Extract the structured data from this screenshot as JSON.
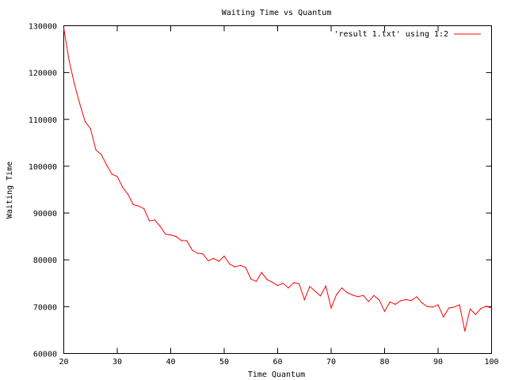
{
  "chart_data": {
    "type": "line",
    "title": "Waiting Time vs Quantum",
    "xlabel": "Time Quantum",
    "ylabel": "Waiting Time",
    "xlim": [
      20,
      100
    ],
    "ylim": [
      60000,
      130000
    ],
    "xticks": [
      20,
      30,
      40,
      50,
      60,
      70,
      80,
      90,
      100
    ],
    "yticks": [
      60000,
      70000,
      80000,
      90000,
      100000,
      110000,
      120000,
      130000
    ],
    "grid": false,
    "legend_position": "top-right",
    "series": [
      {
        "name": "'result 1.txt' using 1:2",
        "color": "#ff0000",
        "x": [
          20,
          21,
          22,
          23,
          24,
          25,
          26,
          27,
          28,
          29,
          30,
          31,
          32,
          33,
          34,
          35,
          36,
          37,
          38,
          39,
          40,
          41,
          42,
          43,
          44,
          45,
          46,
          47,
          48,
          49,
          50,
          51,
          52,
          53,
          54,
          55,
          56,
          57,
          58,
          59,
          60,
          61,
          62,
          63,
          64,
          65,
          66,
          67,
          68,
          69,
          70,
          71,
          72,
          73,
          74,
          75,
          76,
          77,
          78,
          79,
          80,
          81,
          82,
          83,
          84,
          85,
          86,
          87,
          88,
          89,
          90,
          91,
          92,
          93,
          94,
          95,
          96,
          97,
          98,
          99,
          100
        ],
        "y": [
          129500,
          122500,
          117500,
          113300,
          109500,
          108000,
          103500,
          102500,
          100300,
          98300,
          97800,
          95500,
          94000,
          91800,
          91500,
          90900,
          88300,
          88500,
          87200,
          85500,
          85300,
          85000,
          84100,
          84100,
          82100,
          81400,
          81300,
          79800,
          80300,
          79700,
          80800,
          79100,
          78500,
          78800,
          78400,
          75900,
          75400,
          77300,
          75800,
          75200,
          74500,
          75000,
          74000,
          75100,
          74900,
          71500,
          74300,
          73300,
          72300,
          74400,
          69700,
          72600,
          74000,
          73000,
          72500,
          72100,
          72400,
          71100,
          72400,
          71400,
          69000,
          71000,
          70500,
          71300,
          71500,
          71300,
          72100,
          70800,
          70000,
          69900,
          70400,
          67800,
          69700,
          69900,
          70400,
          64800,
          69500,
          68300,
          69600,
          70100,
          69700
        ]
      }
    ]
  }
}
